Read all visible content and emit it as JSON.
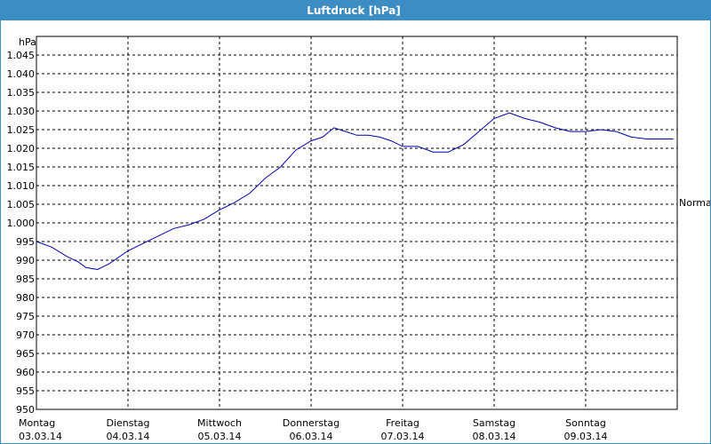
{
  "window": {
    "title": "Luftdruck [hPa]"
  },
  "chart_data": {
    "type": "line",
    "title": "Luftdruck [hPa]",
    "ylabel": "hPa",
    "ylim": [
      950,
      1050
    ],
    "y_ticks": [
      "950",
      "955",
      "960",
      "965",
      "970",
      "975",
      "980",
      "985",
      "990",
      "995",
      "1.000",
      "1.005",
      "1.010",
      "1.015",
      "1.020",
      "1.025",
      "1.030",
      "1.035",
      "1.040",
      "1.045"
    ],
    "xlim": [
      "2014-03-03T00:00",
      "2014-03-10T00:00"
    ],
    "x_ticks": [
      {
        "day": "Montag",
        "date": "03.03.14"
      },
      {
        "day": "Dienstag",
        "date": "04.03.14"
      },
      {
        "day": "Mittwoch",
        "date": "05.03.14"
      },
      {
        "day": "Donnerstag",
        "date": "06.03.14"
      },
      {
        "day": "Freitag",
        "date": "07.03.14"
      },
      {
        "day": "Samstag",
        "date": "08.03.14"
      },
      {
        "day": "Sonntag",
        "date": "09.03.14"
      }
    ],
    "grid": true,
    "reference_line": {
      "label": "Normal",
      "value": 1005.5
    },
    "colors": {
      "line": "#0000aa",
      "grid": "#000000",
      "titlebar": "#3c8dc4"
    },
    "series": [
      {
        "x": [
          "2014-03-03T00:00",
          "2014-03-03T04:00",
          "2014-03-03T08:00",
          "2014-03-03T11:00",
          "2014-03-03T13:00",
          "2014-03-03T16:00",
          "2014-03-03T19:00",
          "2014-03-04T00:00",
          "2014-03-04T04:00",
          "2014-03-04T08:00",
          "2014-03-04T12:00",
          "2014-03-04T16:00",
          "2014-03-04T20:00",
          "2014-03-05T00:00",
          "2014-03-05T04:00",
          "2014-03-05T08:00",
          "2014-03-05T12:00",
          "2014-03-05T16:00",
          "2014-03-05T20:00",
          "2014-03-06T00:00",
          "2014-03-06T03:00",
          "2014-03-06T06:00",
          "2014-03-06T09:00",
          "2014-03-06T12:00",
          "2014-03-06T15:00",
          "2014-03-06T18:00",
          "2014-03-06T21:00",
          "2014-03-07T00:00",
          "2014-03-07T04:00",
          "2014-03-07T08:00",
          "2014-03-07T12:00",
          "2014-03-07T16:00",
          "2014-03-07T20:00",
          "2014-03-08T00:00",
          "2014-03-08T04:00",
          "2014-03-08T08:00",
          "2014-03-08T12:00",
          "2014-03-08T16:00",
          "2014-03-08T20:00",
          "2014-03-09T00:00",
          "2014-03-09T04:00",
          "2014-03-09T08:00",
          "2014-03-09T12:00",
          "2014-03-09T16:00",
          "2014-03-09T20:00",
          "2014-03-09T23:00"
        ],
        "y": [
          995.0,
          993.5,
          991.0,
          989.5,
          988.0,
          987.5,
          989.0,
          992.5,
          994.5,
          996.5,
          998.5,
          999.5,
          1001.0,
          1003.5,
          1005.5,
          1008.0,
          1012.0,
          1015.0,
          1019.5,
          1022.0,
          1023.0,
          1025.5,
          1024.5,
          1023.5,
          1023.5,
          1023.0,
          1022.0,
          1020.5,
          1020.5,
          1019.0,
          1019.0,
          1021.0,
          1024.5,
          1028.0,
          1029.5,
          1028.0,
          1027.0,
          1025.5,
          1024.5,
          1024.5,
          1025.0,
          1024.5,
          1023.0,
          1022.5,
          1022.5,
          1022.5
        ]
      }
    ]
  }
}
